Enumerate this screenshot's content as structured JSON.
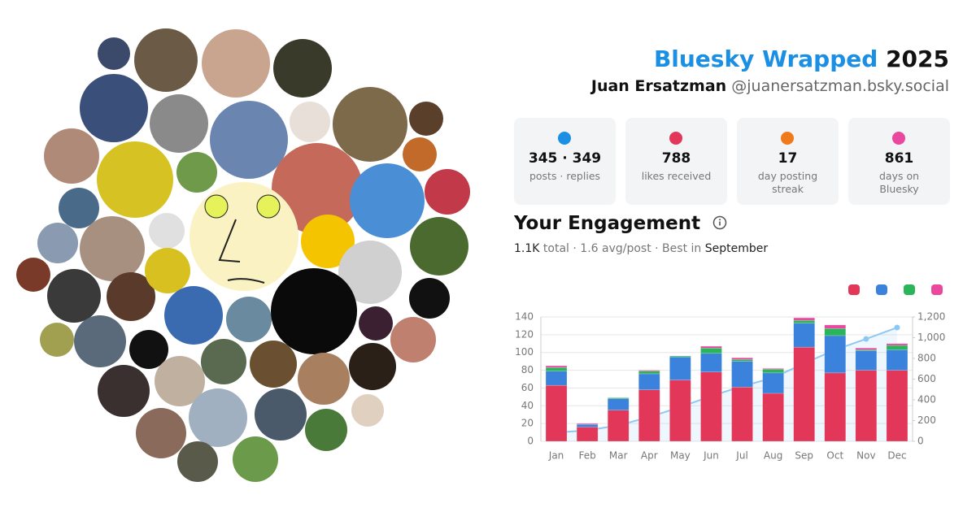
{
  "header": {
    "title": "Bluesky Wrapped",
    "year": "2025",
    "name": "Juan Ersatzman",
    "handle": "@juanersatzman.bsky.social"
  },
  "stats": [
    {
      "value": "345 · 349",
      "label": "posts · replies"
    },
    {
      "value": 788,
      "label": "likes received"
    },
    {
      "value": 17,
      "label": "day posting streak"
    },
    {
      "value": 861,
      "label": "days on Bluesky"
    }
  ],
  "engagement": {
    "title": "Your Engagement",
    "total": "1.1K",
    "total_label": "total ·",
    "avg": "1.6",
    "avg_label": "avg/post · Best in",
    "best": "September"
  },
  "chart_data": {
    "type": "bar",
    "stacked": true,
    "categories": [
      "Jan",
      "Feb",
      "Mar",
      "Apr",
      "May",
      "Jun",
      "Jul",
      "Aug",
      "Sep",
      "Oct",
      "Nov",
      "Dec"
    ],
    "series": [
      {
        "color": "#e3375a",
        "values": [
          63,
          16,
          35,
          58,
          69,
          78,
          61,
          54,
          106,
          77,
          80,
          80
        ]
      },
      {
        "color": "#3a82dc",
        "values": [
          16,
          3,
          13,
          18,
          26,
          21,
          29,
          23,
          27,
          42,
          22,
          23
        ]
      },
      {
        "color": "#2bb55a",
        "values": [
          4,
          0,
          1,
          3,
          1,
          6,
          2,
          4,
          3,
          8,
          1,
          5
        ]
      },
      {
        "color": "#e9489e",
        "values": [
          2,
          1,
          0,
          1,
          0,
          2,
          2,
          1,
          3,
          4,
          2,
          2
        ]
      },
      {
        "type": "line",
        "axis": "y2",
        "color": "#8cc8f4",
        "values": [
          85,
          105,
          154,
          234,
          330,
          437,
          531,
          613,
          752,
          883,
          988,
          1098
        ]
      }
    ],
    "ylim": [
      0,
      140
    ],
    "yticks": [
      0,
      20,
      40,
      60,
      80,
      100,
      120,
      140
    ],
    "y2lim": [
      0,
      1200
    ],
    "y2ticks": [
      0,
      200,
      400,
      600,
      800,
      {
        "value": 1000,
        "label": "1,000"
      },
      {
        "value": 1200,
        "label": "1,200"
      }
    ],
    "grid": true
  }
}
